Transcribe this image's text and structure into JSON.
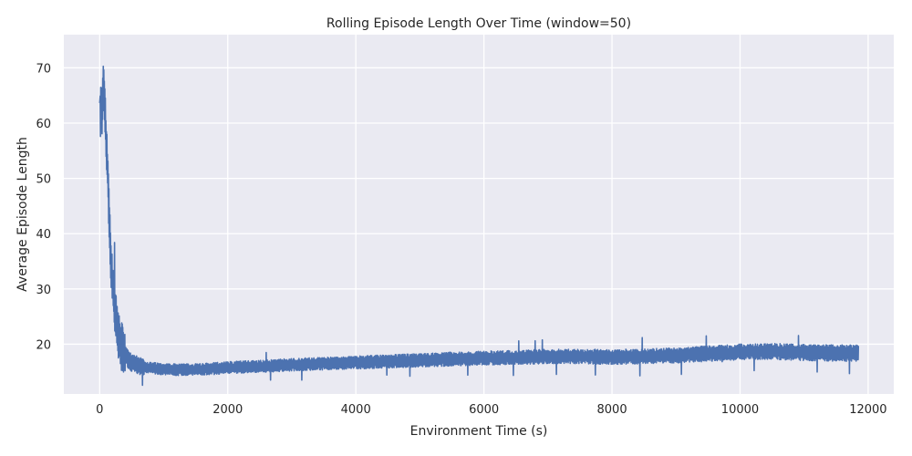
{
  "chart_data": {
    "type": "line",
    "title": "Rolling Episode Length Over Time (window=50)",
    "xlabel": "Environment Time (s)",
    "ylabel": "Average Episode Length",
    "xlim": [
      -560,
      12400
    ],
    "ylim": [
      11,
      76
    ],
    "xticks": [
      0,
      2000,
      4000,
      6000,
      8000,
      10000,
      12000
    ],
    "xtick_labels": [
      "0",
      "2000",
      "4000",
      "6000",
      "8000",
      "10000",
      "12000"
    ],
    "yticks": [
      20,
      30,
      40,
      50,
      60,
      70
    ],
    "ytick_labels": [
      "20",
      "30",
      "40",
      "50",
      "60",
      "70"
    ],
    "grid": true,
    "colors": {
      "background": "#eaeaf2",
      "grid": "#ffffff",
      "line": "#4c72b0"
    },
    "series": [
      {
        "x": [
          0,
          20,
          40,
          50,
          60,
          70,
          80,
          90,
          100,
          110,
          120,
          130,
          140,
          150,
          160,
          170,
          180,
          190,
          200,
          220,
          240,
          260,
          280,
          300,
          320,
          340,
          360,
          380,
          400,
          450,
          500,
          600,
          700,
          800,
          900,
          1000,
          1200,
          1400,
          1600,
          1800,
          2000,
          2500,
          3000,
          3500,
          4000,
          4500,
          5000,
          5500,
          6000,
          6500,
          7000,
          7500,
          8000,
          8500,
          9000,
          9500,
          10000,
          10500,
          11000,
          11500,
          11850
        ],
        "y": [
          60,
          63,
          62,
          66,
          68,
          65,
          62,
          60,
          57,
          54,
          52,
          50,
          46,
          42,
          39,
          36,
          34,
          33,
          31,
          29,
          26,
          24,
          22.5,
          21,
          20.5,
          19.5,
          19,
          18.5,
          18,
          17.2,
          16.6,
          16.2,
          15.9,
          15.7,
          15.6,
          15.5,
          15.4,
          15.4,
          15.5,
          15.6,
          15.8,
          16.0,
          16.3,
          16.5,
          16.7,
          16.9,
          17.1,
          17.3,
          17.5,
          17.6,
          17.8,
          17.8,
          17.7,
          17.8,
          18.0,
          18.3,
          18.6,
          18.7,
          18.5,
          18.4,
          18.4
        ]
      }
    ]
  }
}
